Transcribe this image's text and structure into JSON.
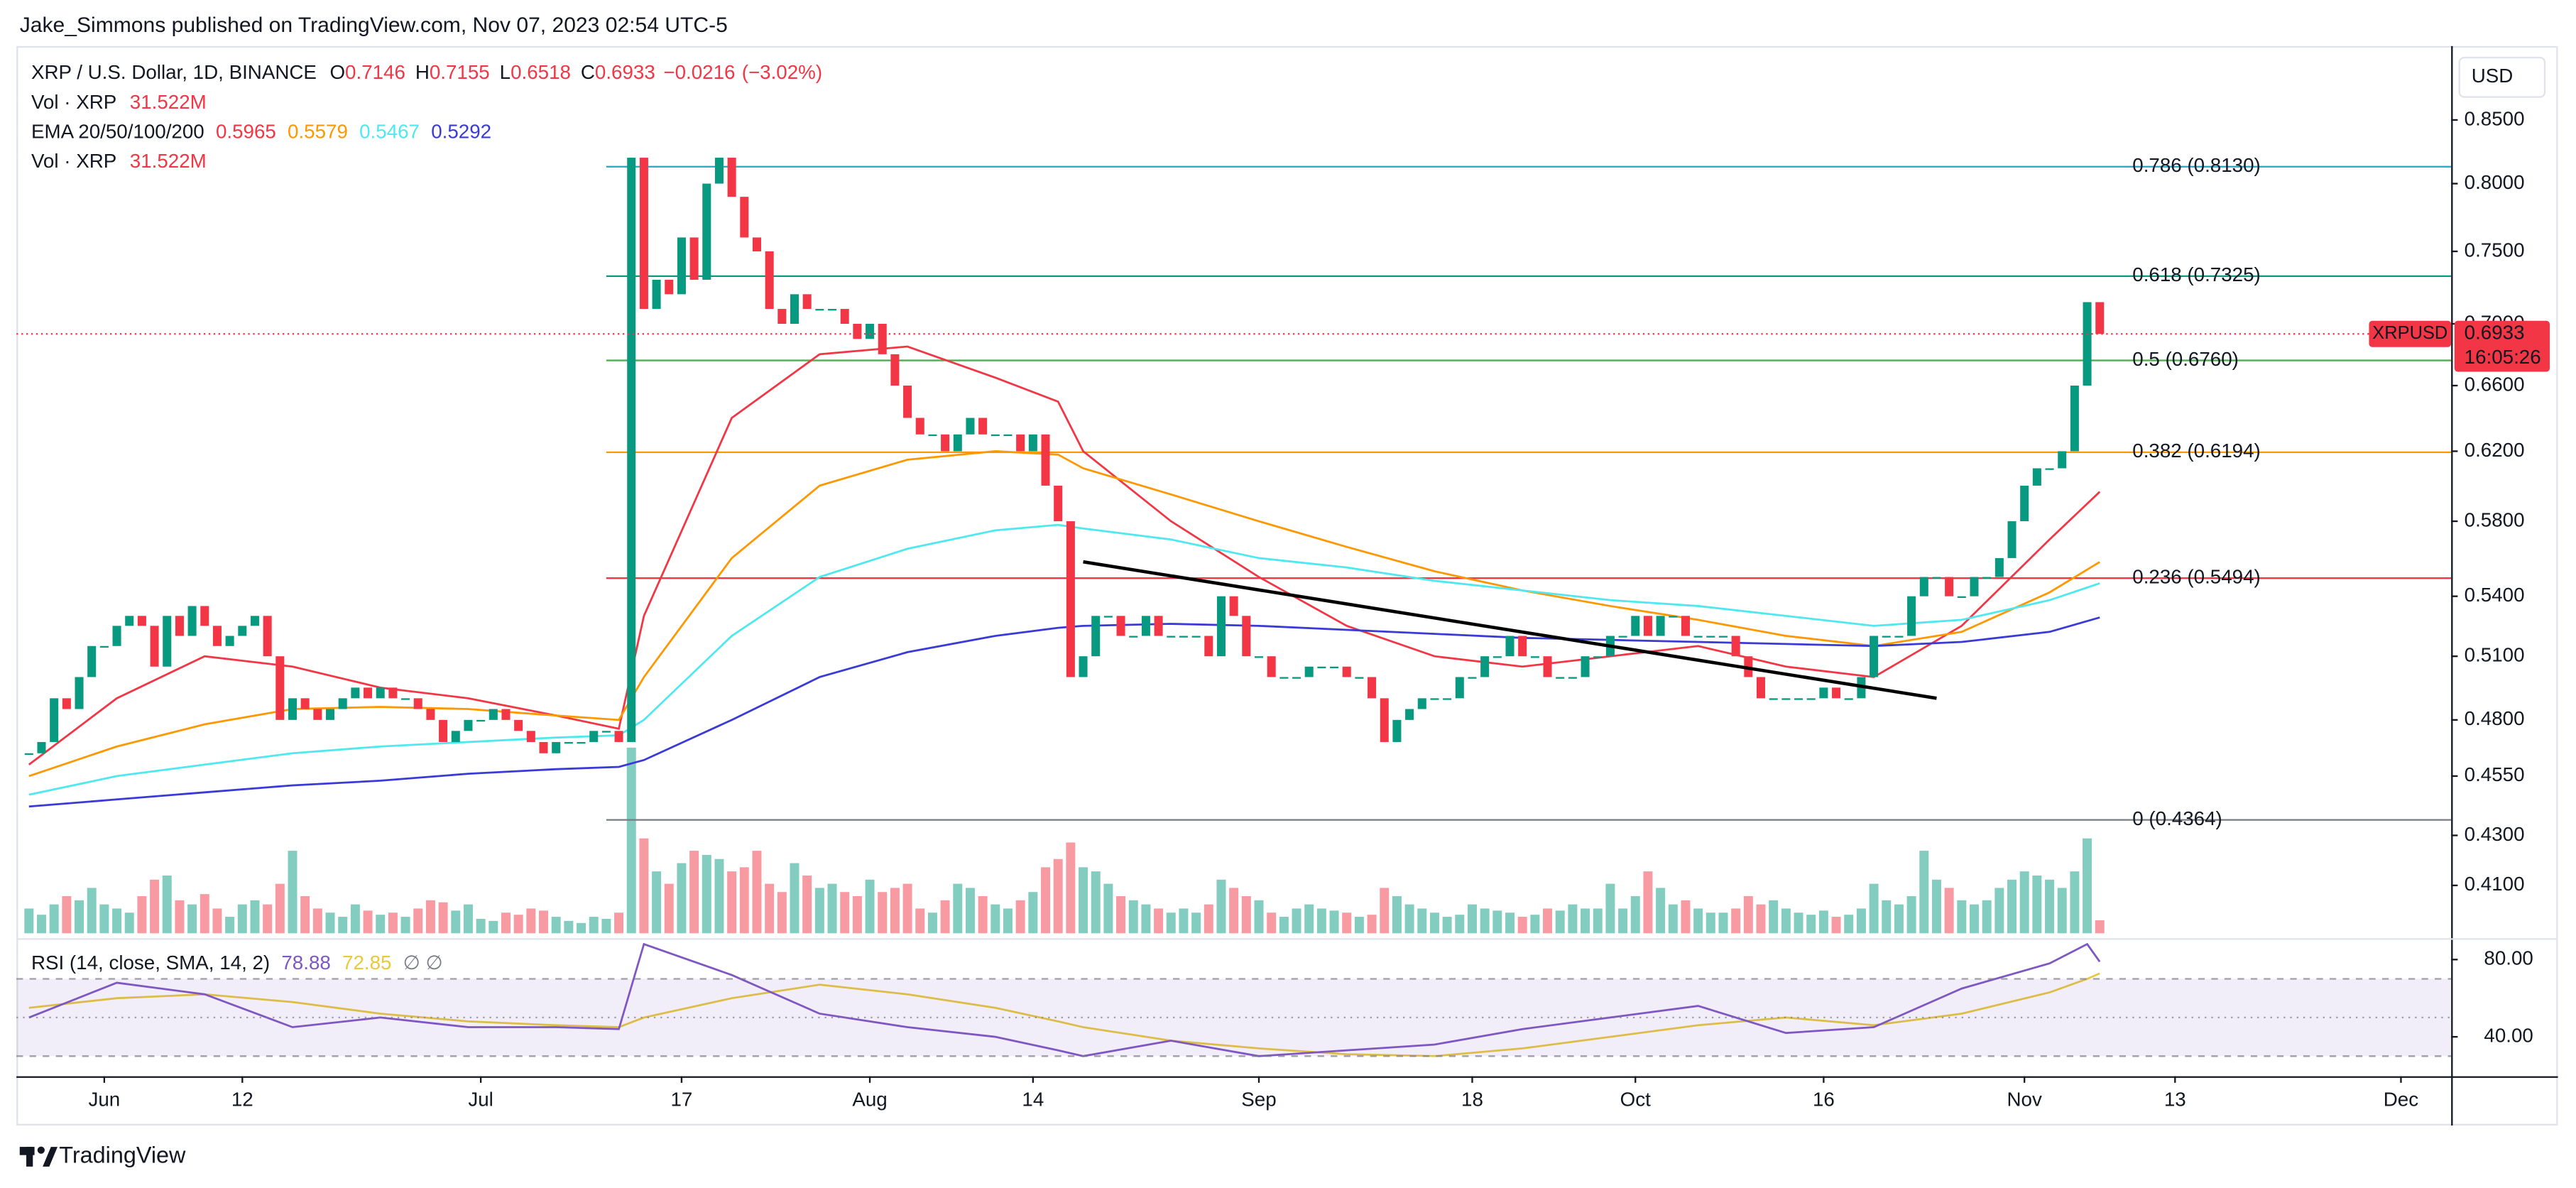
{
  "header": {
    "byline": "Jake_Simmons published on TradingView.com, Nov 07, 2023 02:54 UTC-5"
  },
  "chart_data": [
    {
      "type": "candlestick",
      "title": "XRP / U.S. Dollar, 1D, BINANCE",
      "ohlc": [
        {
          "label": "O",
          "value": 0.7146
        },
        {
          "label": "H",
          "value": 0.7155
        },
        {
          "label": "L",
          "value": 0.6518
        },
        {
          "label": "C",
          "value": 0.6933
        }
      ],
      "change": {
        "value": -0.0216,
        "label": "−0.0216"
      },
      "change_pct": {
        "value": -3.02,
        "label": "(−3.02%)"
      },
      "volume_label": "Vol · XRP",
      "volume_value": {
        "value": 31.522,
        "label": "31.522M"
      },
      "currency": "USD",
      "symbol": "XRPUSD",
      "countdown": "16:05:26",
      "up_color": "#089981",
      "down_color": "#f23645",
      "log": true,
      "grid": false,
      "ylim": [
        0.3905,
        0.912
      ],
      "yticks": [
        {
          "value": 0.85,
          "label": "0.8500"
        },
        {
          "value": 0.8,
          "label": "0.8000"
        },
        {
          "value": 0.75,
          "label": "0.7500"
        },
        {
          "value": 0.7,
          "label": "0.7000"
        },
        {
          "value": 0.66,
          "label": "0.6600"
        },
        {
          "value": 0.62,
          "label": "0.6200"
        },
        {
          "value": 0.58,
          "label": "0.5800"
        },
        {
          "value": 0.54,
          "label": "0.5400"
        },
        {
          "value": 0.51,
          "label": "0.5100"
        },
        {
          "value": 0.48,
          "label": "0.4800"
        },
        {
          "value": 0.455,
          "label": "0.4550"
        },
        {
          "value": 0.43,
          "label": "0.4300"
        },
        {
          "value": 0.41,
          "label": "0.4100"
        }
      ],
      "xlim": [
        "2023-05-25",
        "2023-12-05"
      ],
      "xticks": [
        {
          "value": "2023-06-01",
          "label": "Jun"
        },
        {
          "value": "2023-06-12",
          "label": "12"
        },
        {
          "value": "2023-07-01",
          "label": "Jul"
        },
        {
          "value": "2023-07-17",
          "label": "17"
        },
        {
          "value": "2023-08-01",
          "label": "Aug"
        },
        {
          "value": "2023-08-14",
          "label": "14"
        },
        {
          "value": "2023-09-01",
          "label": "Sep"
        },
        {
          "value": "2023-09-18",
          "label": "18"
        },
        {
          "value": "2023-10-01",
          "label": "Oct"
        },
        {
          "value": "2023-10-16",
          "label": "16"
        },
        {
          "value": "2023-11-01",
          "label": "Nov"
        },
        {
          "value": "2023-11-13",
          "label": "13"
        },
        {
          "value": "2023-12-01",
          "label": "Dec"
        }
      ],
      "x": [
        "2023-05-26",
        "2023-05-27",
        "2023-05-28",
        "2023-05-29",
        "2023-05-30",
        "2023-05-31",
        "2023-06-01",
        "2023-06-02",
        "2023-06-03",
        "2023-06-04",
        "2023-06-05",
        "2023-06-06",
        "2023-06-07",
        "2023-06-08",
        "2023-06-09",
        "2023-06-10",
        "2023-06-11",
        "2023-06-12",
        "2023-06-13",
        "2023-06-14",
        "2023-06-15",
        "2023-06-16",
        "2023-06-17",
        "2023-06-18",
        "2023-06-19",
        "2023-06-20",
        "2023-06-21",
        "2023-06-22",
        "2023-06-23",
        "2023-06-24",
        "2023-06-25",
        "2023-06-26",
        "2023-06-27",
        "2023-06-28",
        "2023-06-29",
        "2023-06-30",
        "2023-07-01",
        "2023-07-02",
        "2023-07-03",
        "2023-07-04",
        "2023-07-05",
        "2023-07-06",
        "2023-07-07",
        "2023-07-08",
        "2023-07-09",
        "2023-07-10",
        "2023-07-11",
        "2023-07-12",
        "2023-07-13",
        "2023-07-14",
        "2023-07-15",
        "2023-07-16",
        "2023-07-17",
        "2023-07-18",
        "2023-07-19",
        "2023-07-20",
        "2023-07-21",
        "2023-07-22",
        "2023-07-23",
        "2023-07-24",
        "2023-07-25",
        "2023-07-26",
        "2023-07-27",
        "2023-07-28",
        "2023-07-29",
        "2023-07-30",
        "2023-07-31",
        "2023-08-01",
        "2023-08-02",
        "2023-08-03",
        "2023-08-04",
        "2023-08-05",
        "2023-08-06",
        "2023-08-07",
        "2023-08-08",
        "2023-08-09",
        "2023-08-10",
        "2023-08-11",
        "2023-08-12",
        "2023-08-13",
        "2023-08-14",
        "2023-08-15",
        "2023-08-16",
        "2023-08-17",
        "2023-08-18",
        "2023-08-19",
        "2023-08-20",
        "2023-08-21",
        "2023-08-22",
        "2023-08-23",
        "2023-08-24",
        "2023-08-25",
        "2023-08-26",
        "2023-08-27",
        "2023-08-28",
        "2023-08-29",
        "2023-08-30",
        "2023-08-31",
        "2023-09-01",
        "2023-09-02",
        "2023-09-03",
        "2023-09-04",
        "2023-09-05",
        "2023-09-06",
        "2023-09-07",
        "2023-09-08",
        "2023-09-09",
        "2023-09-10",
        "2023-09-11",
        "2023-09-12",
        "2023-09-13",
        "2023-09-14",
        "2023-09-15",
        "2023-09-16",
        "2023-09-17",
        "2023-09-18",
        "2023-09-19",
        "2023-09-20",
        "2023-09-21",
        "2023-09-22",
        "2023-09-23",
        "2023-09-24",
        "2023-09-25",
        "2023-09-26",
        "2023-09-27",
        "2023-09-28",
        "2023-09-29",
        "2023-09-30",
        "2023-10-01",
        "2023-10-02",
        "2023-10-03",
        "2023-10-04",
        "2023-10-05",
        "2023-10-06",
        "2023-10-07",
        "2023-10-08",
        "2023-10-09",
        "2023-10-10",
        "2023-10-11",
        "2023-10-12",
        "2023-10-13",
        "2023-10-14",
        "2023-10-15",
        "2023-10-16",
        "2023-10-17",
        "2023-10-18",
        "2023-10-19",
        "2023-10-20",
        "2023-10-21",
        "2023-10-22",
        "2023-10-23",
        "2023-10-24",
        "2023-10-25",
        "2023-10-26",
        "2023-10-27",
        "2023-10-28",
        "2023-10-29",
        "2023-10-30",
        "2023-10-31",
        "2023-11-01",
        "2023-11-02",
        "2023-11-03",
        "2023-11-04",
        "2023-11-05",
        "2023-11-06",
        "2023-11-07"
      ],
      "close": [
        0.465,
        0.47,
        0.49,
        0.485,
        0.5,
        0.515,
        0.515,
        0.525,
        0.53,
        0.525,
        0.505,
        0.53,
        0.52,
        0.535,
        0.525,
        0.515,
        0.52,
        0.525,
        0.53,
        0.51,
        0.48,
        0.49,
        0.485,
        0.48,
        0.485,
        0.49,
        0.495,
        0.49,
        0.495,
        0.49,
        0.49,
        0.485,
        0.48,
        0.47,
        0.475,
        0.48,
        0.48,
        0.485,
        0.48,
        0.475,
        0.47,
        0.465,
        0.47,
        0.47,
        0.47,
        0.475,
        0.475,
        0.47,
        0.82,
        0.71,
        0.73,
        0.72,
        0.76,
        0.73,
        0.8,
        0.82,
        0.79,
        0.76,
        0.75,
        0.71,
        0.7,
        0.72,
        0.71,
        0.71,
        0.71,
        0.7,
        0.69,
        0.7,
        0.68,
        0.66,
        0.64,
        0.63,
        0.63,
        0.62,
        0.63,
        0.64,
        0.63,
        0.63,
        0.63,
        0.62,
        0.63,
        0.6,
        0.58,
        0.5,
        0.51,
        0.53,
        0.53,
        0.52,
        0.52,
        0.53,
        0.52,
        0.52,
        0.52,
        0.52,
        0.51,
        0.54,
        0.53,
        0.51,
        0.51,
        0.5,
        0.5,
        0.5,
        0.505,
        0.505,
        0.505,
        0.5,
        0.5,
        0.49,
        0.47,
        0.48,
        0.485,
        0.49,
        0.49,
        0.49,
        0.5,
        0.5,
        0.51,
        0.51,
        0.52,
        0.51,
        0.51,
        0.5,
        0.5,
        0.5,
        0.51,
        0.51,
        0.52,
        0.52,
        0.53,
        0.52,
        0.53,
        0.53,
        0.52,
        0.52,
        0.52,
        0.52,
        0.51,
        0.5,
        0.49,
        0.49,
        0.49,
        0.49,
        0.49,
        0.495,
        0.49,
        0.49,
        0.5,
        0.52,
        0.52,
        0.52,
        0.54,
        0.55,
        0.55,
        0.54,
        0.54,
        0.55,
        0.55,
        0.56,
        0.58,
        0.6,
        0.61,
        0.61,
        0.62,
        0.66,
        0.7146,
        0.6933
      ],
      "volume": [
        60,
        45,
        70,
        90,
        80,
        110,
        70,
        60,
        50,
        90,
        130,
        140,
        80,
        70,
        95,
        60,
        40,
        70,
        80,
        70,
        120,
        200,
        90,
        60,
        50,
        40,
        70,
        55,
        45,
        50,
        40,
        60,
        80,
        75,
        55,
        70,
        35,
        30,
        50,
        45,
        60,
        55,
        40,
        30,
        25,
        40,
        35,
        50,
        450,
        230,
        150,
        120,
        170,
        200,
        190,
        180,
        150,
        160,
        200,
        120,
        100,
        170,
        140,
        110,
        120,
        100,
        90,
        130,
        100,
        110,
        120,
        60,
        50,
        80,
        120,
        110,
        90,
        70,
        60,
        80,
        100,
        160,
        180,
        220,
        160,
        150,
        120,
        90,
        80,
        70,
        60,
        50,
        60,
        50,
        70,
        130,
        110,
        90,
        80,
        50,
        40,
        60,
        70,
        60,
        55,
        50,
        40,
        45,
        110,
        90,
        70,
        60,
        50,
        40,
        45,
        70,
        60,
        55,
        50,
        40,
        45,
        60,
        55,
        70,
        60,
        60,
        120,
        60,
        90,
        150,
        110,
        70,
        80,
        60,
        50,
        50,
        60,
        90,
        70,
        80,
        60,
        50,
        45,
        55,
        40,
        45,
        60,
        120,
        80,
        70,
        90,
        200,
        130,
        110,
        80,
        70,
        80,
        110,
        130,
        150,
        140,
        130,
        110,
        150,
        230,
        31.522
      ],
      "ema": {
        "label": "EMA 20/50/100/200",
        "x": [
          "2023-05-26",
          "2023-06-02",
          "2023-06-09",
          "2023-06-16",
          "2023-06-23",
          "2023-06-30",
          "2023-07-07",
          "2023-07-12",
          "2023-07-14",
          "2023-07-21",
          "2023-07-28",
          "2023-08-04",
          "2023-08-11",
          "2023-08-16",
          "2023-08-18",
          "2023-08-25",
          "2023-09-01",
          "2023-09-08",
          "2023-09-15",
          "2023-09-22",
          "2023-09-29",
          "2023-10-06",
          "2023-10-13",
          "2023-10-20",
          "2023-10-27",
          "2023-11-03",
          "2023-11-07"
        ],
        "series": [
          {
            "color": "#f23645",
            "values": [
              0.46,
              0.49,
              0.51,
              0.505,
              0.495,
              0.49,
              0.482,
              0.476,
              0.53,
              0.64,
              0.68,
              0.685,
              0.665,
              0.65,
              0.62,
              0.58,
              0.55,
              0.525,
              0.51,
              0.505,
              0.51,
              0.515,
              0.505,
              0.5,
              0.525,
              0.57,
              0.5965
            ]
          },
          {
            "color": "#ff9800",
            "values": [
              0.455,
              0.468,
              0.478,
              0.485,
              0.486,
              0.485,
              0.482,
              0.48,
              0.5,
              0.56,
              0.6,
              0.615,
              0.62,
              0.618,
              0.61,
              0.595,
              0.58,
              0.566,
              0.553,
              0.543,
              0.535,
              0.528,
              0.52,
              0.515,
              0.522,
              0.542,
              0.5579
            ]
          },
          {
            "color": "#4de8f0",
            "values": [
              0.447,
              0.455,
              0.46,
              0.465,
              0.468,
              0.47,
              0.472,
              0.473,
              0.48,
              0.52,
              0.55,
              0.565,
              0.575,
              0.578,
              0.576,
              0.57,
              0.56,
              0.555,
              0.548,
              0.543,
              0.538,
              0.535,
              0.53,
              0.525,
              0.528,
              0.538,
              0.5467
            ]
          },
          {
            "color": "#3a3ad6",
            "values": [
              0.442,
              0.445,
              0.448,
              0.451,
              0.453,
              0.456,
              0.458,
              0.459,
              0.462,
              0.48,
              0.5,
              0.512,
              0.52,
              0.524,
              0.525,
              0.526,
              0.525,
              0.523,
              0.521,
              0.519,
              0.518,
              0.517,
              0.516,
              0.515,
              0.517,
              0.522,
              0.5292
            ]
          }
        ]
      },
      "fib": {
        "from": "2023-07-11",
        "levels": [
          {
            "label": "0.786 (0.8130)",
            "value": 0.813,
            "color": "#22a7c9"
          },
          {
            "label": "0.618 (0.7325)",
            "value": 0.7325,
            "color": "#089981"
          },
          {
            "label": "0.5 (0.6760)",
            "value": 0.676,
            "color": "#4caf50"
          },
          {
            "label": "0.382 (0.6194)",
            "value": 0.6194,
            "color": "#ff9800"
          },
          {
            "label": "0.236 (0.5494)",
            "value": 0.5494,
            "color": "#f23645"
          },
          {
            "label": "0 (0.4364)",
            "value": 0.4364,
            "color": "#787b86"
          }
        ]
      },
      "trendline": {
        "color": "#000000",
        "x": [
          "2023-08-18",
          "2023-10-25"
        ],
        "y": [
          0.558,
          0.49
        ]
      }
    },
    {
      "type": "line",
      "title": "RSI (14, close, SMA, 14, 2)",
      "flags": "∅  ∅",
      "ylim": [
        19.6,
        90.2
      ],
      "yticks": [
        {
          "value": 80,
          "label": "80.00"
        },
        {
          "value": 40,
          "label": "40.00"
        }
      ],
      "bands": [
        70,
        50,
        30
      ],
      "x": [
        "2023-05-26",
        "2023-06-02",
        "2023-06-09",
        "2023-06-16",
        "2023-06-23",
        "2023-06-30",
        "2023-07-07",
        "2023-07-12",
        "2023-07-14",
        "2023-07-21",
        "2023-07-28",
        "2023-08-04",
        "2023-08-11",
        "2023-08-16",
        "2023-08-18",
        "2023-08-25",
        "2023-09-01",
        "2023-09-08",
        "2023-09-15",
        "2023-09-22",
        "2023-09-29",
        "2023-10-06",
        "2023-10-13",
        "2023-10-20",
        "2023-10-27",
        "2023-11-03",
        "2023-11-06",
        "2023-11-07"
      ],
      "series": [
        {
          "color": "#7e57c2",
          "values": [
            50,
            68,
            62,
            45,
            50,
            45,
            45,
            44,
            88,
            72,
            52,
            45,
            40,
            33,
            30,
            38,
            30,
            33,
            36,
            44,
            50,
            56,
            42,
            45,
            65,
            78,
            88,
            78.88
          ]
        },
        {
          "color": "#e8c93a",
          "values": [
            55,
            60,
            62,
            58,
            52,
            48,
            46,
            45,
            50,
            60,
            67,
            62,
            55,
            48,
            45,
            38,
            34,
            31,
            30,
            34,
            40,
            46,
            50,
            46,
            52,
            63,
            70,
            72.85
          ]
        }
      ]
    }
  ],
  "footer": {
    "brand": "TradingView"
  }
}
